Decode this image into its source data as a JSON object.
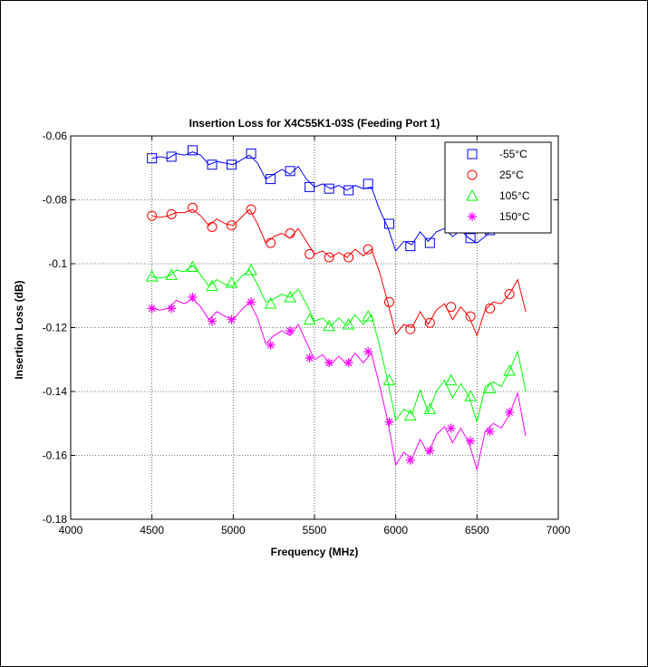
{
  "chart_data": {
    "type": "line",
    "title": "Insertion Loss for X4C55K1-03S (Feeding Port 1)",
    "xlabel": "Frequency (MHz)",
    "ylabel": "Insertion Loss (dB)",
    "xlim": [
      4000,
      7000
    ],
    "ylim": [
      -0.18,
      -0.06
    ],
    "xticks": [
      "4000",
      "4500",
      "5000",
      "5500",
      "6000",
      "6500",
      "7000"
    ],
    "yticks": [
      "-0.06",
      "-0.08",
      "-0.1",
      "-0.12",
      "-0.14",
      "-0.16",
      "-0.18"
    ],
    "grid": true,
    "legend_position": "top-right",
    "series": [
      {
        "name": "-55°C",
        "color": "#0000ff",
        "marker": "square",
        "x": [
          4500,
          4550,
          4600,
          4650,
          4700,
          4750,
          4800,
          4850,
          4900,
          4950,
          5000,
          5050,
          5100,
          5150,
          5200,
          5250,
          5300,
          5350,
          5400,
          5450,
          5500,
          5550,
          5600,
          5650,
          5700,
          5750,
          5800,
          5850,
          5900,
          5950,
          6000,
          6050,
          6100,
          6150,
          6200,
          6250,
          6300,
          6350,
          6400,
          6450,
          6500,
          6550,
          6600
        ],
        "y": [
          -0.067,
          -0.0665,
          -0.067,
          -0.0655,
          -0.066,
          -0.065,
          -0.066,
          -0.069,
          -0.068,
          -0.0685,
          -0.069,
          -0.0675,
          -0.066,
          -0.0685,
          -0.0735,
          -0.072,
          -0.0705,
          -0.072,
          -0.0695,
          -0.0735,
          -0.076,
          -0.075,
          -0.0765,
          -0.0755,
          -0.077,
          -0.0755,
          -0.0765,
          -0.076,
          -0.083,
          -0.0885,
          -0.096,
          -0.093,
          -0.094,
          -0.09,
          -0.093,
          -0.09,
          -0.089,
          -0.0915,
          -0.0895,
          -0.092,
          -0.0935,
          -0.0915,
          -0.089
        ],
        "marker_x": [
          4500,
          4620,
          4750,
          4870,
          4990,
          5110,
          5230,
          5350,
          5470,
          5590,
          5710,
          5830,
          5960,
          6090,
          6210,
          6340,
          6460,
          6580
        ],
        "marker_y": [
          -0.067,
          -0.0665,
          -0.0645,
          -0.069,
          -0.069,
          -0.0655,
          -0.0735,
          -0.071,
          -0.076,
          -0.0765,
          -0.077,
          -0.075,
          -0.0875,
          -0.0945,
          -0.0935,
          -0.0885,
          -0.092,
          -0.0895
        ]
      },
      {
        "name": "25°C",
        "color": "#ff0000",
        "marker": "circle",
        "x": [
          4500,
          4550,
          4600,
          4650,
          4700,
          4750,
          4800,
          4850,
          4900,
          4950,
          5000,
          5050,
          5100,
          5150,
          5200,
          5250,
          5300,
          5350,
          5400,
          5450,
          5500,
          5550,
          5600,
          5650,
          5700,
          5750,
          5800,
          5850,
          5900,
          5950,
          6000,
          6050,
          6100,
          6150,
          6200,
          6250,
          6300,
          6350,
          6400,
          6450,
          6500,
          6550,
          6600,
          6650,
          6700,
          6750,
          6800
        ],
        "y": [
          -0.085,
          -0.0855,
          -0.085,
          -0.084,
          -0.084,
          -0.083,
          -0.085,
          -0.088,
          -0.086,
          -0.0875,
          -0.088,
          -0.0855,
          -0.083,
          -0.0875,
          -0.0935,
          -0.0915,
          -0.0905,
          -0.092,
          -0.089,
          -0.093,
          -0.097,
          -0.096,
          -0.098,
          -0.0965,
          -0.098,
          -0.0955,
          -0.0975,
          -0.0955,
          -0.1025,
          -0.112,
          -0.122,
          -0.119,
          -0.12,
          -0.115,
          -0.119,
          -0.1145,
          -0.1125,
          -0.1175,
          -0.1135,
          -0.1165,
          -0.1225,
          -0.1145,
          -0.112,
          -0.1125,
          -0.1095,
          -0.105,
          -0.115
        ],
        "marker_x": [
          4500,
          4620,
          4750,
          4870,
          4990,
          5110,
          5230,
          5350,
          5470,
          5590,
          5710,
          5830,
          5960,
          6090,
          6210,
          6340,
          6460,
          6580,
          6700
        ],
        "marker_y": [
          -0.085,
          -0.0845,
          -0.0825,
          -0.0885,
          -0.088,
          -0.083,
          -0.0935,
          -0.0905,
          -0.097,
          -0.098,
          -0.098,
          -0.0955,
          -0.112,
          -0.1205,
          -0.1185,
          -0.1135,
          -0.1165,
          -0.114,
          -0.1095
        ]
      },
      {
        "name": "105°C",
        "color": "#00ff00",
        "marker": "triangle",
        "x": [
          4500,
          4550,
          4600,
          4650,
          4700,
          4750,
          4800,
          4850,
          4900,
          4950,
          5000,
          5050,
          5100,
          5150,
          5200,
          5250,
          5300,
          5350,
          5400,
          5450,
          5500,
          5550,
          5600,
          5650,
          5700,
          5750,
          5800,
          5850,
          5900,
          5950,
          6000,
          6050,
          6100,
          6150,
          6200,
          6250,
          6300,
          6350,
          6400,
          6450,
          6500,
          6550,
          6600,
          6650,
          6700,
          6750,
          6800
        ],
        "y": [
          -0.104,
          -0.1045,
          -0.104,
          -0.102,
          -0.1025,
          -0.1005,
          -0.1035,
          -0.107,
          -0.105,
          -0.1065,
          -0.107,
          -0.104,
          -0.102,
          -0.1065,
          -0.112,
          -0.111,
          -0.1095,
          -0.1105,
          -0.108,
          -0.1125,
          -0.118,
          -0.117,
          -0.1195,
          -0.117,
          -0.1195,
          -0.116,
          -0.119,
          -0.116,
          -0.1255,
          -0.1365,
          -0.149,
          -0.1455,
          -0.147,
          -0.1395,
          -0.1465,
          -0.14,
          -0.1365,
          -0.142,
          -0.1375,
          -0.1415,
          -0.1495,
          -0.1385,
          -0.137,
          -0.1385,
          -0.1335,
          -0.1275,
          -0.14
        ],
        "marker_x": [
          4500,
          4620,
          4750,
          4870,
          4990,
          5110,
          5230,
          5350,
          5470,
          5590,
          5710,
          5830,
          5960,
          6090,
          6210,
          6340,
          6460,
          6580,
          6700
        ],
        "marker_y": [
          -0.104,
          -0.1035,
          -0.101,
          -0.107,
          -0.106,
          -0.102,
          -0.1125,
          -0.1105,
          -0.1175,
          -0.1195,
          -0.119,
          -0.1165,
          -0.1365,
          -0.1475,
          -0.1455,
          -0.1365,
          -0.1415,
          -0.139,
          -0.1335
        ]
      },
      {
        "name": "150°C",
        "color": "#ff00ff",
        "marker": "asterisk",
        "x": [
          4500,
          4550,
          4600,
          4650,
          4700,
          4750,
          4800,
          4850,
          4900,
          4950,
          5000,
          5050,
          5100,
          5150,
          5200,
          5250,
          5300,
          5350,
          5400,
          5450,
          5500,
          5550,
          5600,
          5650,
          5700,
          5750,
          5800,
          5850,
          5900,
          5950,
          6000,
          6050,
          6100,
          6150,
          6200,
          6250,
          6300,
          6350,
          6400,
          6450,
          6500,
          6550,
          6600,
          6650,
          6700,
          6750,
          6800
        ],
        "y": [
          -0.114,
          -0.1145,
          -0.114,
          -0.1115,
          -0.1125,
          -0.111,
          -0.1135,
          -0.1175,
          -0.115,
          -0.1165,
          -0.1175,
          -0.1145,
          -0.112,
          -0.117,
          -0.125,
          -0.1225,
          -0.121,
          -0.1225,
          -0.119,
          -0.1245,
          -0.13,
          -0.1285,
          -0.1315,
          -0.129,
          -0.1315,
          -0.128,
          -0.131,
          -0.128,
          -0.138,
          -0.149,
          -0.163,
          -0.159,
          -0.161,
          -0.155,
          -0.1595,
          -0.1535,
          -0.151,
          -0.156,
          -0.1515,
          -0.156,
          -0.1645,
          -0.1525,
          -0.15,
          -0.1515,
          -0.147,
          -0.1405,
          -0.154
        ],
        "marker_x": [
          4500,
          4620,
          4750,
          4870,
          4990,
          5110,
          5230,
          5350,
          5470,
          5590,
          5710,
          5830,
          5960,
          6090,
          6210,
          6340,
          6460,
          6580,
          6700
        ],
        "marker_y": [
          -0.114,
          -0.114,
          -0.1105,
          -0.118,
          -0.1175,
          -0.112,
          -0.1255,
          -0.121,
          -0.1295,
          -0.131,
          -0.131,
          -0.1275,
          -0.1495,
          -0.1615,
          -0.1585,
          -0.1515,
          -0.1555,
          -0.1525,
          -0.1465
        ]
      }
    ]
  }
}
